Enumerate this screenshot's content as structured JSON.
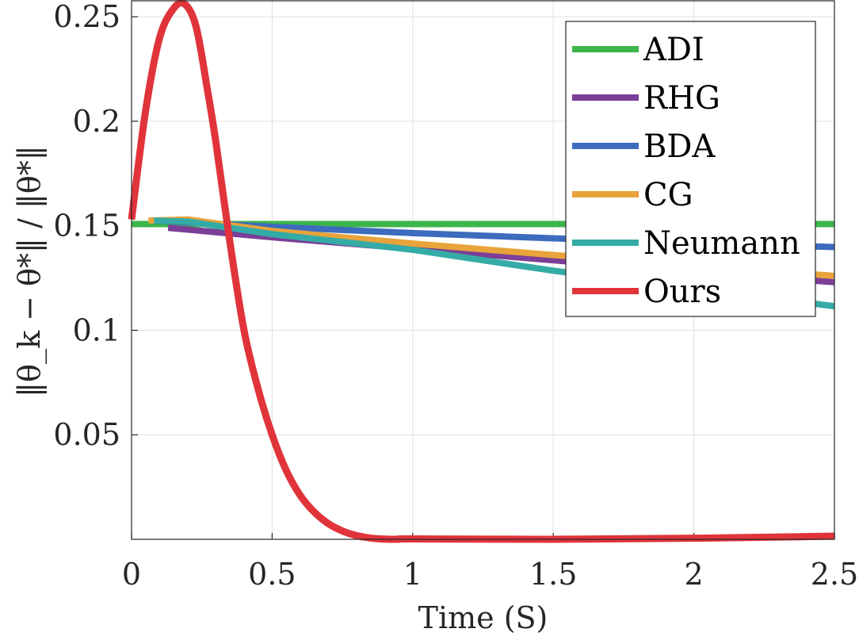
{
  "chart_data": {
    "type": "line",
    "xlabel": "Time (S)",
    "ylabel": "‖θ_k − θ*‖ / ‖θ*‖",
    "xlim": [
      0,
      2.5
    ],
    "ylim": [
      0,
      0.25
    ],
    "xticks": [
      "0",
      "0.5",
      "1",
      "1.5",
      "2",
      "2.5"
    ],
    "yticks": [
      "0.05",
      "0.1",
      "0.15",
      "0.2",
      "0.25"
    ],
    "grid": true,
    "legend_position": "top-right",
    "series": [
      {
        "name": "ADI",
        "color": "#3cb54a",
        "x": [
          0,
          2.5
        ],
        "y": [
          0.1508,
          0.1508
        ]
      },
      {
        "name": "RHG",
        "color": "#7b3f98",
        "x": [
          0.13,
          0.5,
          1.0,
          1.5,
          2.0,
          2.5
        ],
        "y": [
          0.149,
          0.1445,
          0.139,
          0.1335,
          0.128,
          0.123
        ]
      },
      {
        "name": "BDA",
        "color": "#3d6bbd",
        "x": [
          0.07,
          0.5,
          1.0,
          1.5,
          2.0,
          2.5
        ],
        "y": [
          0.1525,
          0.1495,
          0.1465,
          0.144,
          0.1418,
          0.1398
        ]
      },
      {
        "name": "CG",
        "color": "#e8a33a",
        "x": [
          0.06,
          0.2,
          0.5,
          1.0,
          1.5,
          2.0,
          2.5
        ],
        "y": [
          0.1525,
          0.153,
          0.1475,
          0.1415,
          0.136,
          0.131,
          0.126
        ]
      },
      {
        "name": "Neumann",
        "color": "#35aba6",
        "x": [
          0.08,
          0.2,
          0.5,
          1.0,
          1.5,
          2.0,
          2.5
        ],
        "y": [
          0.1525,
          0.152,
          0.146,
          0.1385,
          0.1285,
          0.12,
          0.1115
        ]
      },
      {
        "name": "Ours",
        "color": "#e0343a",
        "x": [
          0,
          0.05,
          0.1,
          0.15,
          0.19,
          0.23,
          0.27,
          0.3,
          0.35,
          0.4,
          0.45,
          0.5,
          0.55,
          0.6,
          0.65,
          0.7,
          0.75,
          0.8,
          0.85,
          0.9,
          0.95,
          1.0,
          1.5,
          2.0,
          2.5
        ],
        "y": [
          0.153,
          0.205,
          0.24,
          0.254,
          0.256,
          0.245,
          0.215,
          0.19,
          0.142,
          0.1,
          0.072,
          0.05,
          0.033,
          0.021,
          0.013,
          0.0075,
          0.004,
          0.0018,
          0.0006,
          0.0001,
          0.0,
          0.0002,
          0.0,
          0.0005,
          0.0015
        ]
      }
    ]
  }
}
